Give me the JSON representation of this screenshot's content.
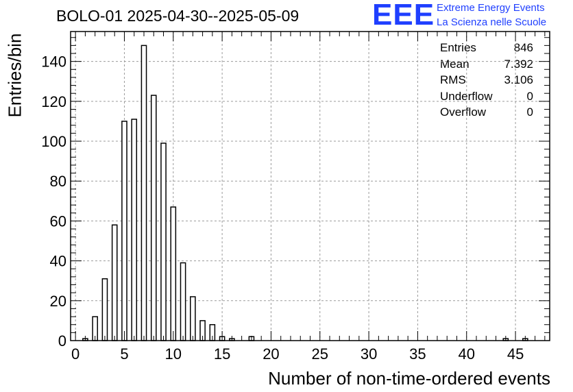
{
  "header": {
    "title": "BOLO-01 2025-04-30--2025-05-09",
    "logo_mark": "EEE",
    "logo_line1": "Extreme Energy Events",
    "logo_line2": "La Scienza nelle Scuole",
    "logo_color": "#1f3fff"
  },
  "stats": [
    {
      "label": "Entries",
      "value": "846"
    },
    {
      "label": "Mean",
      "value": "7.392"
    },
    {
      "label": "RMS",
      "value": "3.106"
    },
    {
      "label": "Underflow",
      "value": "0"
    },
    {
      "label": "Overflow",
      "value": "0"
    }
  ],
  "chart_data": {
    "type": "bar",
    "title": "BOLO-01 2025-04-30--2025-05-09",
    "xlabel": "Number of non-time-ordered events",
    "ylabel": "Entries/bin",
    "xlim": [
      -0.5,
      48.5
    ],
    "ylim": [
      0,
      155
    ],
    "grid": true,
    "x_ticks": [
      0,
      5,
      10,
      15,
      20,
      25,
      30,
      35,
      40,
      45
    ],
    "y_ticks": [
      0,
      20,
      40,
      60,
      80,
      100,
      120,
      140
    ],
    "bins": [
      {
        "x": 1,
        "value": 1
      },
      {
        "x": 2,
        "value": 12
      },
      {
        "x": 3,
        "value": 31
      },
      {
        "x": 4,
        "value": 58
      },
      {
        "x": 5,
        "value": 110
      },
      {
        "x": 6,
        "value": 111
      },
      {
        "x": 7,
        "value": 148
      },
      {
        "x": 8,
        "value": 123
      },
      {
        "x": 9,
        "value": 99
      },
      {
        "x": 10,
        "value": 67
      },
      {
        "x": 11,
        "value": 39
      },
      {
        "x": 12,
        "value": 22
      },
      {
        "x": 13,
        "value": 10
      },
      {
        "x": 14,
        "value": 8
      },
      {
        "x": 15,
        "value": 2
      },
      {
        "x": 16,
        "value": 1
      },
      {
        "x": 18,
        "value": 2
      },
      {
        "x": 44,
        "value": 1
      },
      {
        "x": 46,
        "value": 1
      }
    ]
  }
}
